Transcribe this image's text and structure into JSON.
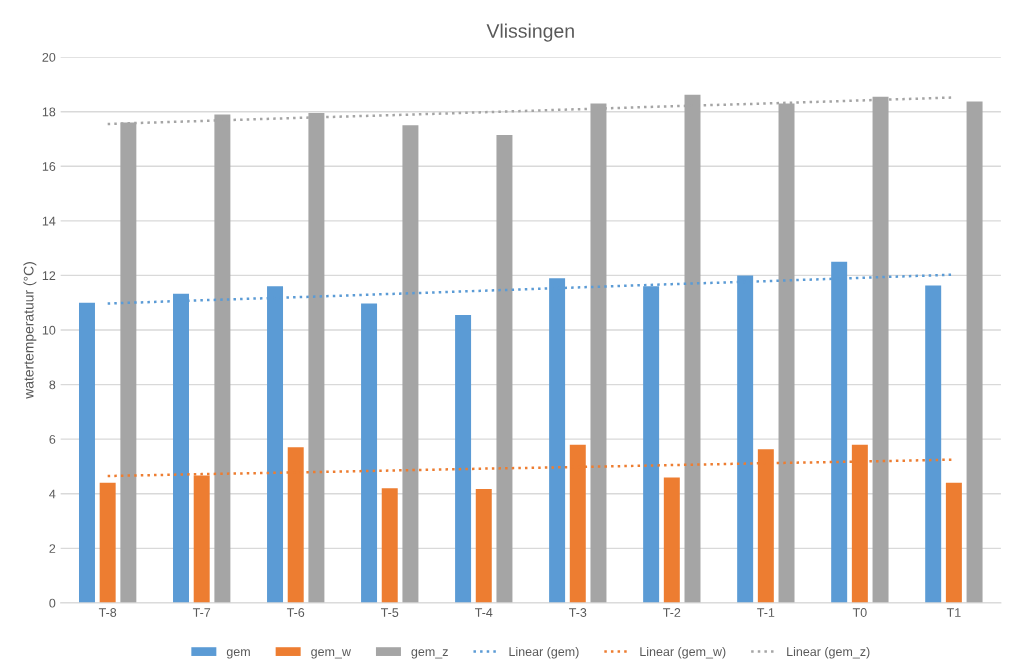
{
  "chart_data": {
    "type": "bar",
    "title": "Vlissingen",
    "ylabel": "watertemperatuur (°C)",
    "categories": [
      "T-8",
      "T-7",
      "T-6",
      "T-5",
      "T-4",
      "T-3",
      "T-2",
      "T-1",
      "T0",
      "T1"
    ],
    "series": [
      {
        "name": "gem",
        "color": "#5b9bd5",
        "values": [
          11.0,
          11.33,
          11.6,
          10.97,
          10.55,
          11.9,
          11.6,
          12.0,
          12.5,
          11.63
        ]
      },
      {
        "name": "gem_w",
        "color": "#ed7d31",
        "values": [
          4.4,
          4.67,
          5.7,
          4.2,
          4.17,
          5.8,
          4.6,
          5.63,
          5.8,
          4.4
        ]
      },
      {
        "name": "gem_z",
        "color": "#a5a5a5",
        "values": [
          17.6,
          17.9,
          17.95,
          17.5,
          17.15,
          18.3,
          18.62,
          18.3,
          18.55,
          18.37
        ]
      },
      {
        "name": "Linear (gem)",
        "type": "line",
        "line_style": "dotted",
        "color": "#5b9bd5",
        "values": [
          10.97,
          11.09,
          11.2,
          11.32,
          11.44,
          11.56,
          11.68,
          11.79,
          11.91,
          12.03
        ]
      },
      {
        "name": "Linear (gem_w)",
        "type": "line",
        "line_style": "dotted",
        "color": "#ed7d31",
        "values": [
          4.65,
          4.72,
          4.78,
          4.85,
          4.92,
          4.98,
          5.05,
          5.12,
          5.18,
          5.25
        ]
      },
      {
        "name": "Linear (gem_z)",
        "type": "line",
        "line_style": "dotted",
        "color": "#a5a5a5",
        "values": [
          17.55,
          17.66,
          17.77,
          17.87,
          17.98,
          18.09,
          18.2,
          18.3,
          18.41,
          18.52
        ]
      }
    ],
    "ylim": [
      0,
      20
    ],
    "yticks": [
      0,
      2,
      4,
      6,
      8,
      10,
      12,
      14,
      16,
      18,
      20
    ],
    "grid": "y",
    "legend": "bottom"
  }
}
